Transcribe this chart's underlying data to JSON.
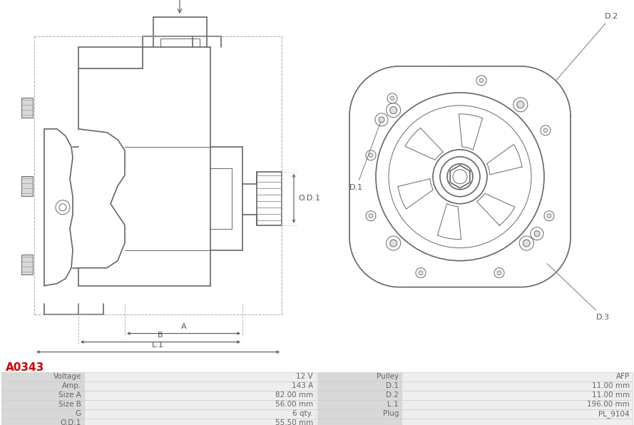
{
  "title": "A0343",
  "title_color": "#cc0000",
  "bg_color": "#ffffff",
  "table_data": [
    [
      "Voltage",
      "12 V",
      "Pulley",
      "AFP"
    ],
    [
      "Amp.",
      "143 A",
      "D.1",
      "11.00 mm"
    ],
    [
      "Size A",
      "82.00 mm",
      "D.2",
      "11.00 mm"
    ],
    [
      "Size B",
      "56.00 mm",
      "L.1",
      "196.00 mm"
    ],
    [
      "G",
      "6 qty.",
      "Plug",
      "PL_9104"
    ],
    [
      "O.D.1",
      "55.50 mm",
      "",
      ""
    ]
  ],
  "line_color": "#666666",
  "thin_color": "#888888",
  "dim_color": "#555555",
  "text_color": "#666666",
  "title_color_val": "#cc0000",
  "bg_color_val": "#ffffff"
}
